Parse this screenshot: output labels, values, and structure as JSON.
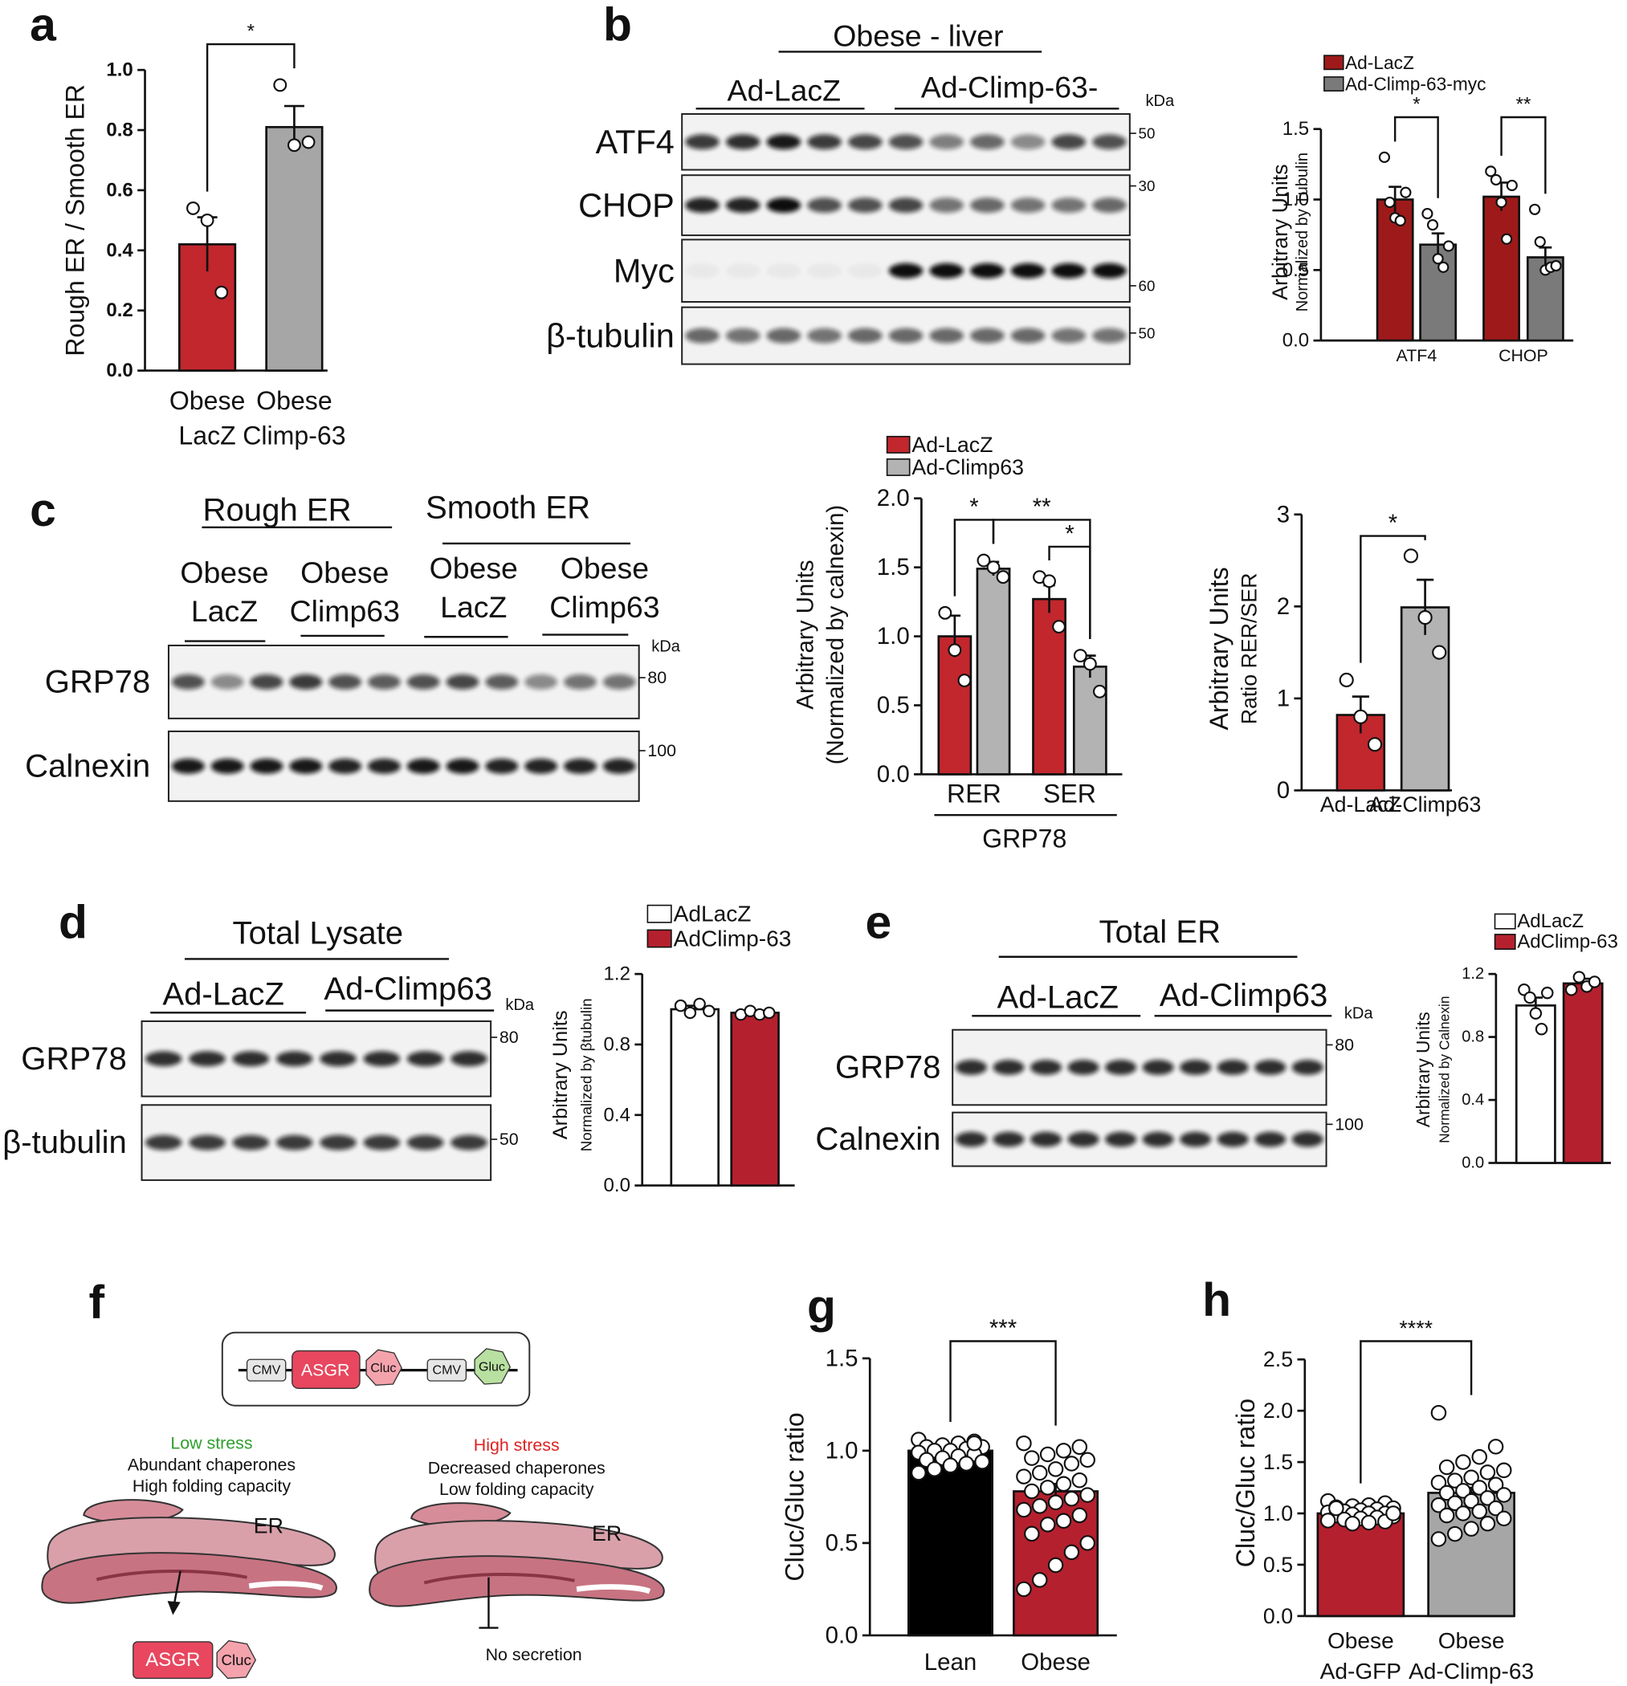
{
  "panel_labels": [
    "a",
    "b",
    "c",
    "d",
    "e",
    "f",
    "g",
    "h"
  ],
  "blots": [
    {
      "title": "Obese - liver",
      "groups": [
        "Ad-LacZ",
        "Ad-Climp-63-"
      ],
      "unit": "kDa",
      "rows": [
        {
          "label": "ATF4",
          "marker": 50
        },
        {
          "label": "CHOP",
          "marker": 30
        },
        {
          "label": "Myc",
          "marker": 60
        },
        {
          "label": "β-tubulin",
          "marker": 50
        }
      ]
    },
    {
      "groups": [
        "Rough ER",
        "Smooth ER"
      ],
      "subgroups": [
        [
          "Obese",
          "LacZ"
        ],
        [
          "Obese",
          "Climp63"
        ],
        [
          "Obese",
          "LacZ"
        ],
        [
          "Obese",
          "Climp63"
        ]
      ],
      "unit": "kDa",
      "rows": [
        {
          "label": "GRP78",
          "marker": 80
        },
        {
          "label": "Calnexin",
          "marker": 100
        }
      ]
    },
    {
      "title": "Total Lysate",
      "groups": [
        "Ad-LacZ",
        "Ad-Climp63"
      ],
      "unit": "kDa",
      "rows": [
        {
          "label": "GRP78",
          "marker": 80
        },
        {
          "label": "β-tubulin",
          "marker": 50
        }
      ]
    },
    {
      "title": "Total ER",
      "groups": [
        "Ad-LacZ",
        "Ad-Climp63"
      ],
      "unit": "kDa",
      "rows": [
        {
          "label": "GRP78",
          "marker": 80
        },
        {
          "label": "Calnexin",
          "marker": 100
        }
      ]
    }
  ],
  "diagram": {
    "construct": [
      "CMV",
      "ASGR",
      "Cluc",
      "CMV",
      "Gluc"
    ],
    "left": {
      "state": "Low stress",
      "lines": [
        "Abundant chaperones",
        "High folding capacity"
      ],
      "organelle": "ER",
      "output": [
        "ASGR",
        "Cluc"
      ]
    },
    "right": {
      "state": "High stress",
      "lines": [
        "Decreased chaperones",
        "Low folding capacity"
      ],
      "organelle": "ER",
      "output": "No secretion"
    }
  },
  "chart_data": [
    {
      "type": "bar",
      "categories": [
        [
          "Obese",
          "LacZ"
        ],
        [
          "Obese",
          "Climp-63"
        ]
      ],
      "ylabel": "Rough ER / Smooth ER",
      "ylim": [
        0,
        1
      ],
      "yticks": [
        {
          "value": 0,
          "label": "0.0"
        },
        0.2,
        0.4,
        0.6,
        0.8,
        {
          "value": 1,
          "label": "1.0"
        }
      ],
      "series": [
        {
          "colors": [
            "#c1272d",
            "#a6a6a6"
          ],
          "values": [
            0.42,
            0.81
          ],
          "errors": [
            0.09,
            0.07
          ],
          "points": [
            [
              0.54,
              0.5,
              0.26
            ],
            [
              0.95,
              0.75,
              0.76
            ]
          ]
        }
      ],
      "annotations": [
        {
          "label": "*",
          "from": [
            0,
            0
          ],
          "to": [
            1,
            0
          ]
        }
      ]
    },
    {
      "type": "bar",
      "categories": [
        "ATF4",
        "CHOP"
      ],
      "ylabel": "Arbitrary Units",
      "ylabel_sub": "Normalized by Tubulin",
      "ylim": [
        0,
        1.5
      ],
      "yticks": [
        {
          "value": 0,
          "label": "0.0"
        },
        0.5,
        {
          "value": 1,
          "label": "1.0"
        },
        1.5
      ],
      "series": [
        {
          "name": "Ad-LacZ",
          "color": "#9e1a1a",
          "values": [
            1.0,
            1.02
          ],
          "errors": [
            0.09,
            0.1
          ],
          "points": [
            [
              1.3,
              0.98,
              0.87,
              0.85,
              1.05
            ],
            [
              1.2,
              1.14,
              0.98,
              0.72,
              1.1
            ]
          ]
        },
        {
          "name": "Ad-Climp-63-myc",
          "color": "#7a7a7a",
          "values": [
            0.68,
            0.59
          ],
          "errors": [
            0.08,
            0.07
          ],
          "points": [
            [
              0.9,
              0.82,
              0.58,
              0.52,
              0.67
            ],
            [
              0.93,
              0.7,
              0.5,
              0.52,
              0.53
            ]
          ]
        }
      ],
      "annotations": [
        {
          "label": "*",
          "from": [
            0,
            0
          ],
          "to": [
            0,
            1
          ]
        },
        {
          "label": "**",
          "from": [
            1,
            0
          ],
          "to": [
            1,
            1
          ]
        }
      ]
    },
    {
      "type": "bar",
      "categories": [
        "RER",
        "SER"
      ],
      "xlabel": "GRP78",
      "ylabel": "Arbitrary Units",
      "ylabel_sub": "(Normalized by calnexin)",
      "ylim": [
        0,
        2
      ],
      "yticks": [
        {
          "value": 0,
          "label": "0.0"
        },
        0.5,
        {
          "value": 1,
          "label": "1.0"
        },
        1.5,
        {
          "value": 2,
          "label": "2.0"
        }
      ],
      "series": [
        {
          "name": "Ad-LacZ",
          "color": "#c1272d",
          "values": [
            1.0,
            1.27
          ],
          "errors": [
            0.15,
            0.1
          ],
          "points": [
            [
              1.17,
              0.9,
              0.68
            ],
            [
              1.43,
              1.4,
              1.07
            ]
          ]
        },
        {
          "name": "Ad-Climp63",
          "color": "#b3b3b3",
          "values": [
            1.49,
            0.78
          ],
          "errors": [
            0.05,
            0.08
          ],
          "points": [
            [
              1.55,
              1.5,
              1.43
            ],
            [
              0.86,
              0.8,
              0.6
            ]
          ]
        }
      ],
      "annotations": [
        {
          "label": "*",
          "from": [
            0,
            0
          ],
          "to": [
            0,
            1
          ]
        },
        {
          "label": "**",
          "from": [
            0,
            1
          ],
          "to": [
            1,
            1
          ]
        },
        {
          "label": "*",
          "from": [
            1,
            0
          ],
          "to": [
            1,
            1
          ]
        }
      ]
    },
    {
      "type": "bar",
      "categories": [
        "Ad-LacZ",
        "Ad-Climp63"
      ],
      "ylabel": "Arbitrary Units",
      "ylabel_sub": "Ratio RER/SER",
      "ylim": [
        0,
        3
      ],
      "yticks": [
        0,
        1,
        2,
        3
      ],
      "series": [
        {
          "colors": [
            "#c1272d",
            "#b3b3b3"
          ],
          "values": [
            0.82,
            1.99
          ],
          "errors": [
            0.2,
            0.3
          ],
          "points": [
            [
              1.2,
              0.8,
              0.5
            ],
            [
              2.55,
              1.88,
              1.5
            ]
          ]
        }
      ],
      "annotations": [
        {
          "label": "*",
          "from": [
            0,
            0
          ],
          "to": [
            1,
            0
          ]
        }
      ]
    },
    {
      "type": "bar",
      "categories": [
        null
      ],
      "ylabel": "Arbitrary Units",
      "ylabel_sub": "Normalized by βtubulin",
      "ylim": [
        0,
        1.2
      ],
      "yticks": [
        {
          "value": 0,
          "label": "0.0"
        },
        0.4,
        0.8,
        1.2
      ],
      "series": [
        {
          "name": "AdLacZ",
          "color": "#ffffff",
          "values": [
            1.0
          ],
          "errors": [
            0.02
          ],
          "points": [
            [
              1.02,
              0.98,
              1.03,
              0.99
            ]
          ]
        },
        {
          "name": "AdClimp-63",
          "color": "#b5202e",
          "values": [
            0.98
          ],
          "errors": [
            0.01
          ],
          "points": [
            [
              0.97,
              0.99,
              0.97,
              0.98
            ]
          ]
        }
      ]
    },
    {
      "type": "bar",
      "categories": [
        null
      ],
      "ylabel": "Arbitrary Units",
      "ylabel_sub": "Normalized by Calnexin",
      "ylim": [
        0,
        1.2
      ],
      "yticks": [
        {
          "value": 0,
          "label": "0.0"
        },
        0.4,
        0.8,
        1.2
      ],
      "series": [
        {
          "name": "AdLacZ",
          "color": "#ffffff",
          "values": [
            1.0
          ],
          "errors": [
            0.05
          ],
          "points": [
            [
              1.1,
              1.05,
              0.95,
              0.85,
              1.08
            ]
          ]
        },
        {
          "name": "AdClimp-63",
          "color": "#b5202e",
          "values": [
            1.14
          ],
          "errors": [
            0.03
          ],
          "points": [
            [
              1.1,
              1.18,
              1.12,
              1.15
            ]
          ]
        }
      ]
    },
    {
      "type": "bar",
      "categories": [
        "Lean",
        "Obese"
      ],
      "ylabel": "Cluc/Gluc ratio",
      "ylim": [
        0,
        1.5
      ],
      "yticks": [
        {
          "value": 0,
          "label": "0.0"
        },
        0.5,
        {
          "value": 1,
          "label": "1.0"
        },
        1.5
      ],
      "series": [
        {
          "colors": [
            "#000000",
            "#b5202e"
          ],
          "values": [
            1.0,
            0.78
          ],
          "errors": [
            0.02,
            0.04
          ],
          "points": [
            [
              1.06,
              1.05,
              1.04,
              1.03,
              1.02,
              1.02,
              1.01,
              1.0,
              1.0,
              0.99,
              0.98,
              0.97,
              0.96,
              0.95,
              0.94,
              0.93,
              0.92,
              0.9,
              0.88,
              1.04
            ],
            [
              1.04,
              1.02,
              1.0,
              0.98,
              0.96,
              0.95,
              0.93,
              0.9,
              0.88,
              0.86,
              0.84,
              0.82,
              0.8,
              0.78,
              0.76,
              0.74,
              0.72,
              0.7,
              0.68,
              0.65,
              0.62,
              0.6,
              0.55,
              0.5,
              0.45,
              0.38,
              0.3,
              0.25
            ]
          ]
        }
      ],
      "annotations": [
        {
          "label": "***",
          "from": [
            0,
            0
          ],
          "to": [
            1,
            0
          ]
        }
      ]
    },
    {
      "type": "bar",
      "categories": [
        [
          "Obese",
          "Ad-GFP"
        ],
        [
          "Obese",
          "Ad-Climp-63"
        ]
      ],
      "ylabel": "Cluc/Gluc ratio",
      "ylim": [
        0,
        2.5
      ],
      "yticks": [
        {
          "value": 0,
          "label": "0.0"
        },
        0.5,
        {
          "value": 1,
          "label": "1.0"
        },
        1.5,
        {
          "value": 2,
          "label": "2.0"
        },
        2.5
      ],
      "series": [
        {
          "colors": [
            "#b5202e",
            "#a6a6a6"
          ],
          "values": [
            1.0,
            1.2
          ],
          "errors": [
            0.02,
            0.05
          ],
          "points": [
            [
              1.12,
              1.1,
              1.08,
              1.07,
              1.06,
              1.05,
              1.04,
              1.03,
              1.02,
              1.01,
              1.0,
              1.0,
              0.99,
              0.98,
              0.97,
              0.96,
              0.95,
              0.94,
              0.93,
              0.92,
              0.91,
              0.9,
              1.05,
              1.0
            ],
            [
              1.98,
              1.65,
              1.55,
              1.5,
              1.45,
              1.42,
              1.4,
              1.35,
              1.32,
              1.3,
              1.28,
              1.25,
              1.22,
              1.2,
              1.18,
              1.15,
              1.12,
              1.1,
              1.08,
              1.05,
              1.02,
              1.0,
              0.98,
              0.95,
              0.9,
              0.85,
              0.8,
              0.75
            ]
          ]
        }
      ],
      "annotations": [
        {
          "label": "****",
          "from": [
            0,
            0
          ],
          "to": [
            1,
            0
          ]
        }
      ]
    }
  ]
}
